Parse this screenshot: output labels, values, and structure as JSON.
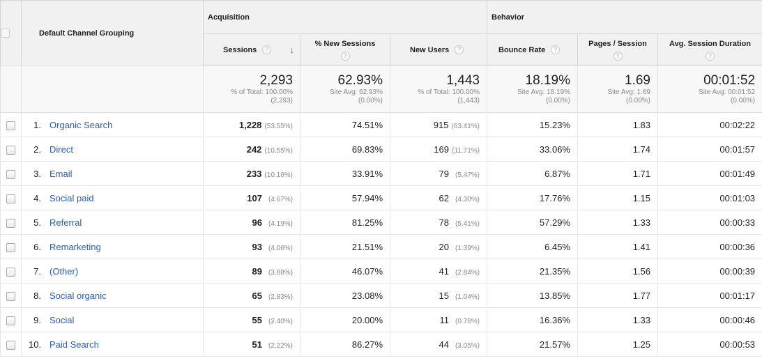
{
  "header": {
    "dimension_label": "Default Channel Grouping",
    "group_acquisition": "Acquisition",
    "group_behavior": "Behavior",
    "columns": {
      "sessions": "Sessions",
      "new_sessions": "% New Sessions",
      "new_users": "New Users",
      "bounce_rate": "Bounce Rate",
      "pages_session": "Pages / Session",
      "avg_duration": "Avg. Session Duration"
    },
    "help_glyph": "?",
    "sort_glyph": "↓"
  },
  "totals": {
    "sessions": {
      "value": "2,293",
      "sub1": "% of Total: 100.00%",
      "sub2": "(2,293)"
    },
    "new_sessions": {
      "value": "62.93%",
      "sub1": "Site Avg: 62.93%",
      "sub2": "(0.00%)"
    },
    "new_users": {
      "value": "1,443",
      "sub1": "% of Total: 100.00%",
      "sub2": "(1,443)"
    },
    "bounce_rate": {
      "value": "18.19%",
      "sub1": "Site Avg: 18.19%",
      "sub2": "(0.00%)"
    },
    "pages_session": {
      "value": "1.69",
      "sub1": "Site Avg: 1.69",
      "sub2": "(0.00%)"
    },
    "avg_duration": {
      "value": "00:01:52",
      "sub1": "Site Avg: 00:01:52",
      "sub2": "(0.00%)"
    }
  },
  "rows": [
    {
      "idx": "1.",
      "channel": "Organic Search",
      "sessions": "1,228",
      "sessions_pct": "(53.55%)",
      "new_sessions": "74.51%",
      "new_users": "915",
      "new_users_pct": "(63.41%)",
      "bounce_rate": "15.23%",
      "pages_session": "1.83",
      "avg_duration": "00:02:22"
    },
    {
      "idx": "2.",
      "channel": "Direct",
      "sessions": "242",
      "sessions_pct": "(10.55%)",
      "new_sessions": "69.83%",
      "new_users": "169",
      "new_users_pct": "(11.71%)",
      "bounce_rate": "33.06%",
      "pages_session": "1.74",
      "avg_duration": "00:01:57"
    },
    {
      "idx": "3.",
      "channel": "Email",
      "sessions": "233",
      "sessions_pct": "(10.16%)",
      "new_sessions": "33.91%",
      "new_users": "79",
      "new_users_pct": "(5.47%)",
      "bounce_rate": "6.87%",
      "pages_session": "1.71",
      "avg_duration": "00:01:49"
    },
    {
      "idx": "4.",
      "channel": "Social paid",
      "sessions": "107",
      "sessions_pct": "(4.67%)",
      "new_sessions": "57.94%",
      "new_users": "62",
      "new_users_pct": "(4.30%)",
      "bounce_rate": "17.76%",
      "pages_session": "1.15",
      "avg_duration": "00:01:03"
    },
    {
      "idx": "5.",
      "channel": "Referral",
      "sessions": "96",
      "sessions_pct": "(4.19%)",
      "new_sessions": "81.25%",
      "new_users": "78",
      "new_users_pct": "(5.41%)",
      "bounce_rate": "57.29%",
      "pages_session": "1.33",
      "avg_duration": "00:00:33"
    },
    {
      "idx": "6.",
      "channel": "Remarketing",
      "sessions": "93",
      "sessions_pct": "(4.06%)",
      "new_sessions": "21.51%",
      "new_users": "20",
      "new_users_pct": "(1.39%)",
      "bounce_rate": "6.45%",
      "pages_session": "1.41",
      "avg_duration": "00:00:36"
    },
    {
      "idx": "7.",
      "channel": "(Other)",
      "sessions": "89",
      "sessions_pct": "(3.88%)",
      "new_sessions": "46.07%",
      "new_users": "41",
      "new_users_pct": "(2.84%)",
      "bounce_rate": "21.35%",
      "pages_session": "1.56",
      "avg_duration": "00:00:39"
    },
    {
      "idx": "8.",
      "channel": "Social organic",
      "sessions": "65",
      "sessions_pct": "(2.83%)",
      "new_sessions": "23.08%",
      "new_users": "15",
      "new_users_pct": "(1.04%)",
      "bounce_rate": "13.85%",
      "pages_session": "1.77",
      "avg_duration": "00:01:17"
    },
    {
      "idx": "9.",
      "channel": "Social",
      "sessions": "55",
      "sessions_pct": "(2.40%)",
      "new_sessions": "20.00%",
      "new_users": "11",
      "new_users_pct": "(0.76%)",
      "bounce_rate": "16.36%",
      "pages_session": "1.33",
      "avg_duration": "00:00:46"
    },
    {
      "idx": "10.",
      "channel": "Paid Search",
      "sessions": "51",
      "sessions_pct": "(2.22%)",
      "new_sessions": "86.27%",
      "new_users": "44",
      "new_users_pct": "(3.05%)",
      "bounce_rate": "21.57%",
      "pages_session": "1.25",
      "avg_duration": "00:00:53"
    }
  ],
  "colors": {
    "link": "#2a5db0",
    "header_bg": "#f1f1f1",
    "muted": "#888888"
  }
}
